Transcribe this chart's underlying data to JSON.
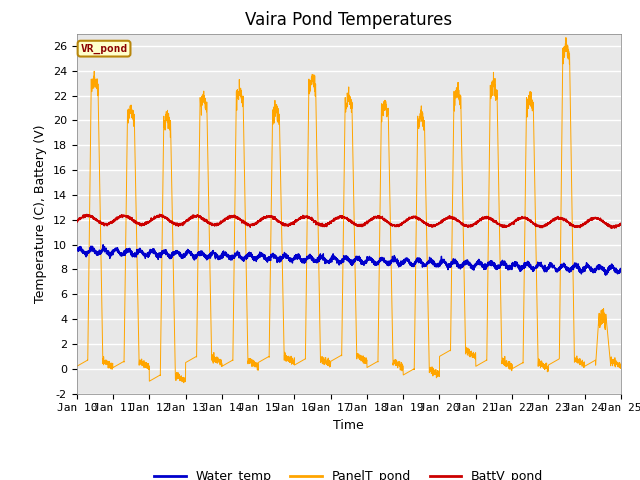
{
  "title": "Vaira Pond Temperatures",
  "xlabel": "Time",
  "ylabel": "Temperature (C), Battery (V)",
  "subtitle_box": "VR_pond",
  "xlim": [
    10,
    25
  ],
  "ylim": [
    -2,
    27
  ],
  "yticks": [
    -2,
    0,
    2,
    4,
    6,
    8,
    10,
    12,
    14,
    16,
    18,
    20,
    22,
    24,
    26
  ],
  "xtick_labels": [
    "Jan 10",
    "Jan 11",
    "Jan 12",
    "Jan 13",
    "Jan 14",
    "Jan 15",
    "Jan 16",
    "Jan 17",
    "Jan 18",
    "Jan 19",
    "Jan 20",
    "Jan 21",
    "Jan 22",
    "Jan 23",
    "Jan 24",
    "Jan 25"
  ],
  "water_temp_color": "#0000cc",
  "panel_temp_color": "#ffa500",
  "batt_color": "#cc0000",
  "bg_color": "#e8e8e8",
  "grid_color": "white",
  "legend_labels": [
    "Water_temp",
    "PanelT_pond",
    "BattV_pond"
  ],
  "legend_colors": [
    "#0000cc",
    "#ffa500",
    "#cc0000"
  ],
  "title_fontsize": 12,
  "axis_label_fontsize": 9,
  "tick_fontsize": 8,
  "legend_fontsize": 9,
  "panel_peaks": [
    23.5,
    21.0,
    20.5,
    22.0,
    22.5,
    21.0,
    23.5,
    22.0,
    21.5,
    20.5,
    22.5,
    23.0,
    22.0,
    26.0,
    4.5
  ],
  "panel_valleys": [
    0.2,
    0.1,
    -1.0,
    0.5,
    0.2,
    0.5,
    0.3,
    0.6,
    0.1,
    -0.5,
    1.0,
    0.2,
    0.0,
    0.3,
    0.2
  ]
}
